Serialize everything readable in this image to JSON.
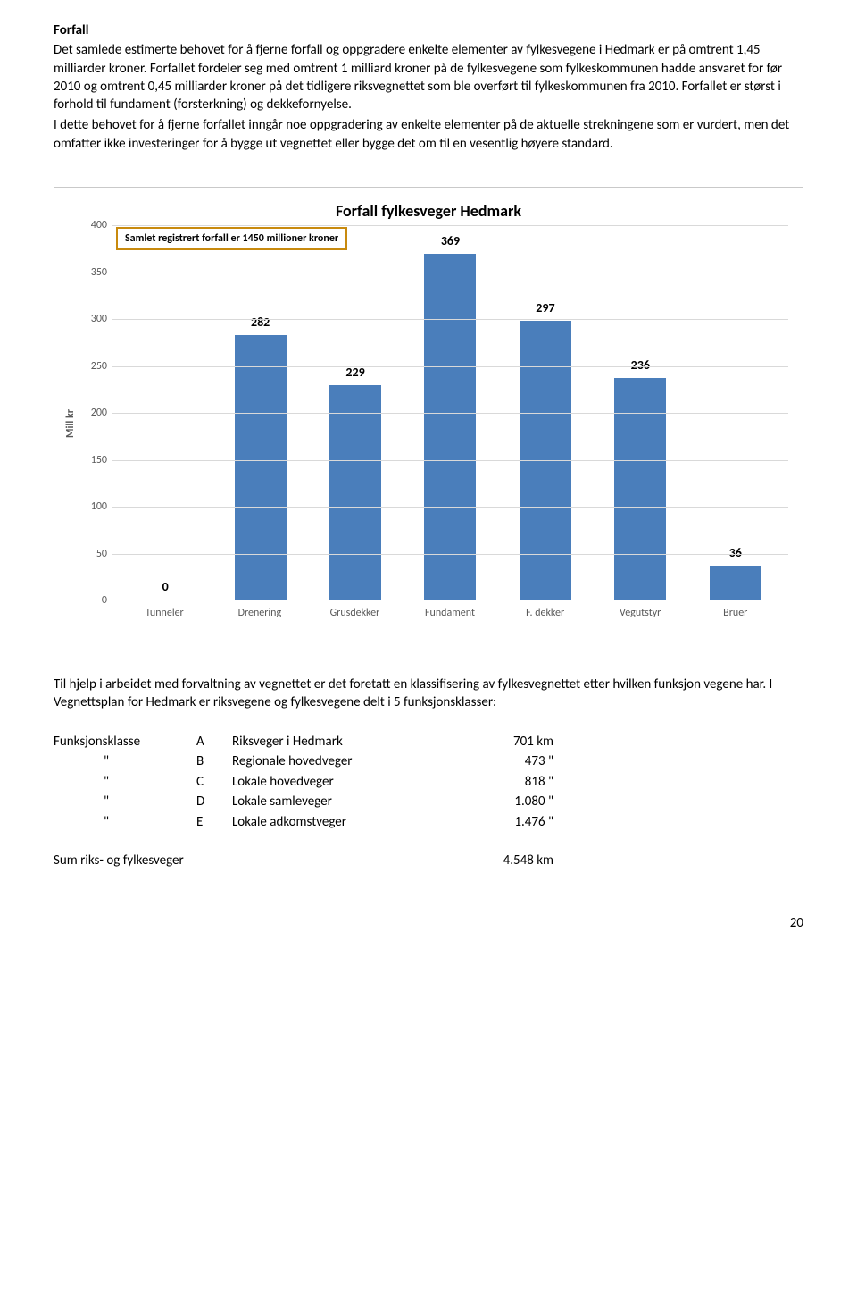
{
  "heading": "Forfall",
  "para1": "Det samlede estimerte behovet for å fjerne forfall og oppgradere enkelte elementer av fylkesvegene i Hedmark er på omtrent 1,45 milliarder kroner. Forfallet fordeler seg med omtrent 1 milliard kroner på de fylkesvegene som fylkeskommunen hadde ansvaret for før 2010 og omtrent 0,45 milliarder kroner på det tidligere riksvegnettet som ble overført til fylkeskommunen fra 2010. Forfallet er størst i forhold til fundament (forsterkning) og dekkefornyelse.",
  "para2": "I dette behovet for å fjerne forfallet inngår noe oppgradering av enkelte elementer på de aktuelle strekningene som er vurdert, men det omfatter ikke investeringer for å bygge ut vegnettet eller bygge det om til en vesentlig høyere standard.",
  "chart": {
    "title": "Forfall fylkesveger Hedmark",
    "annotation": "Samlet registrert forfall er 1450 millioner kroner",
    "ylabel": "Mill kr",
    "ymax": 400,
    "ytick_step": 50,
    "bar_color": "#4a7ebb",
    "grid_color": "#d9d9d9",
    "annotation_border": "#c88a0e",
    "categories": [
      "Tunneler",
      "Drenering",
      "Grusdekker",
      "Fundament",
      "F. dekker",
      "Vegutstyr",
      "Bruer"
    ],
    "values": [
      0,
      282,
      229,
      369,
      297,
      236,
      36
    ]
  },
  "para3": "Til hjelp i arbeidet med forvaltning av vegnettet er det foretatt en klassifisering av fylkesvegnettet etter hvilken funksjon vegene har. I Vegnettsplan for Hedmark er riksvegene og fylkesvegene delt i 5 funksjonsklasser:",
  "func": {
    "label": "Funksjonsklasse",
    "ditto": "\"",
    "rows": [
      {
        "code": "A",
        "name": "Riksveger i Hedmark",
        "value": "701 km"
      },
      {
        "code": "B",
        "name": "Regionale hovedveger",
        "value": "473 \""
      },
      {
        "code": "C",
        "name": "Lokale hovedveger",
        "value": "818 \""
      },
      {
        "code": "D",
        "name": "Lokale samleveger",
        "value": "1.080 \""
      },
      {
        "code": "E",
        "name": "Lokale adkomstveger",
        "value": "1.476 \""
      }
    ]
  },
  "sum": {
    "label": "Sum riks- og fylkesveger",
    "value": "4.548 km"
  },
  "page_number": "20"
}
